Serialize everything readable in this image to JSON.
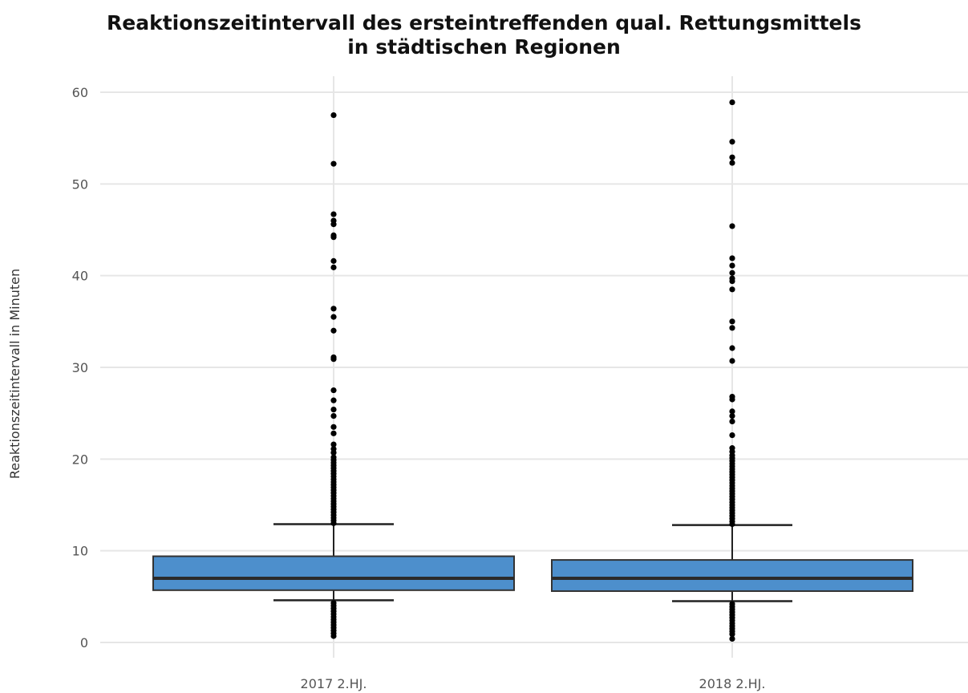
{
  "chart_data": {
    "type": "box",
    "title": "Reaktionszeitintervall des ersteintreffenden qual. Rettungsmittels",
    "subtitle": "in städtischen Regionen",
    "xlabel": "",
    "ylabel": "Reaktionszeitintervall in Minuten",
    "ylim": [
      0,
      60
    ],
    "yticks": [
      0,
      10,
      20,
      30,
      40,
      50,
      60
    ],
    "grid": true,
    "categories": [
      "2017 2.HJ.",
      "2018 2.HJ."
    ],
    "box_color": "#4d8fcc",
    "boxes": [
      {
        "category": "2017 2.HJ.",
        "whisker_low": 4.6,
        "q1": 5.7,
        "median": 7.0,
        "q3": 9.4,
        "whisker_high": 12.9,
        "outliers": [
          57.5,
          52.2,
          46.7,
          46.0,
          45.6,
          44.4,
          44.2,
          41.6,
          40.9,
          36.4,
          35.5,
          34.0,
          31.1,
          30.9,
          27.5,
          26.4,
          25.4,
          24.7,
          23.5,
          22.8,
          21.6,
          21.1,
          20.7,
          20.2,
          19.9,
          19.6,
          19.3,
          19.0,
          18.7,
          18.4,
          18.1,
          17.8,
          17.5,
          17.2,
          16.9,
          16.6,
          16.3,
          16.0,
          15.7,
          15.4,
          15.1,
          14.8,
          14.5,
          14.2,
          13.9,
          13.6,
          13.3,
          13.0,
          4.3,
          4.0,
          3.7,
          3.4,
          3.1,
          2.8,
          2.5,
          2.2,
          1.9,
          1.6,
          1.3,
          1.0,
          0.7
        ]
      },
      {
        "category": "2018 2.HJ.",
        "whisker_low": 4.5,
        "q1": 5.6,
        "median": 7.0,
        "q3": 9.0,
        "whisker_high": 12.8,
        "outliers": [
          58.9,
          54.6,
          52.9,
          52.3,
          45.4,
          41.9,
          41.1,
          40.3,
          39.7,
          39.4,
          38.5,
          35.0,
          34.3,
          32.1,
          30.7,
          26.8,
          26.5,
          25.2,
          24.7,
          24.1,
          22.6,
          21.2,
          20.8,
          20.4,
          20.1,
          19.8,
          19.5,
          19.2,
          18.9,
          18.6,
          18.3,
          18.0,
          17.7,
          17.4,
          17.1,
          16.8,
          16.5,
          16.2,
          15.9,
          15.6,
          15.3,
          15.0,
          14.7,
          14.4,
          14.1,
          13.8,
          13.5,
          13.2,
          12.9,
          4.2,
          3.9,
          3.6,
          3.3,
          3.0,
          2.7,
          2.4,
          2.1,
          1.8,
          1.5,
          1.2,
          0.9,
          0.4
        ]
      }
    ]
  }
}
